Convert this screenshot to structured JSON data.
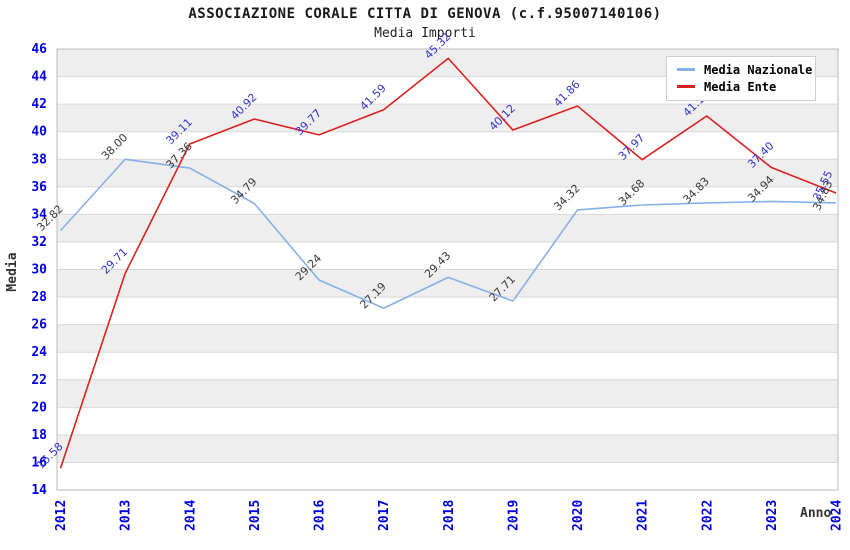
{
  "header": {
    "title": "ASSOCIAZIONE CORALE CITTA DI GENOVA (c.f.95007140106)",
    "subtitle": "Media Importi"
  },
  "chart_data": {
    "type": "line",
    "x": [
      "2012",
      "2013",
      "2014",
      "2015",
      "2016",
      "2017",
      "2018",
      "2019",
      "2020",
      "2021",
      "2022",
      "2023",
      "2024"
    ],
    "xlabel": "Anno",
    "ylabel": "Media",
    "ylim": [
      14,
      46
    ],
    "ytick_step": 2,
    "grid": "horizontal-bands-alternating",
    "legend_position": "top-right",
    "series": [
      {
        "name": "Media Nazionale",
        "color": "#85b1e8",
        "label_color": "#3a3a3a",
        "values": [
          32.82,
          38.0,
          37.36,
          34.79,
          29.24,
          27.19,
          29.43,
          27.71,
          34.32,
          34.68,
          34.83,
          34.94,
          34.83
        ]
      },
      {
        "name": "Media Ente",
        "color": "#dd2020",
        "label_color": "#3333cc",
        "values": [
          15.58,
          29.71,
          39.11,
          40.92,
          39.77,
          41.59,
          45.32,
          40.12,
          41.86,
          37.97,
          41.14,
          37.4,
          35.55
        ]
      }
    ]
  },
  "colors": {
    "tick_label": "#0000dd",
    "band_gray": "#eeeeee",
    "band_white": "#ffffff",
    "gridline": "#d9d9d9",
    "frame": "#bbbbbb"
  }
}
